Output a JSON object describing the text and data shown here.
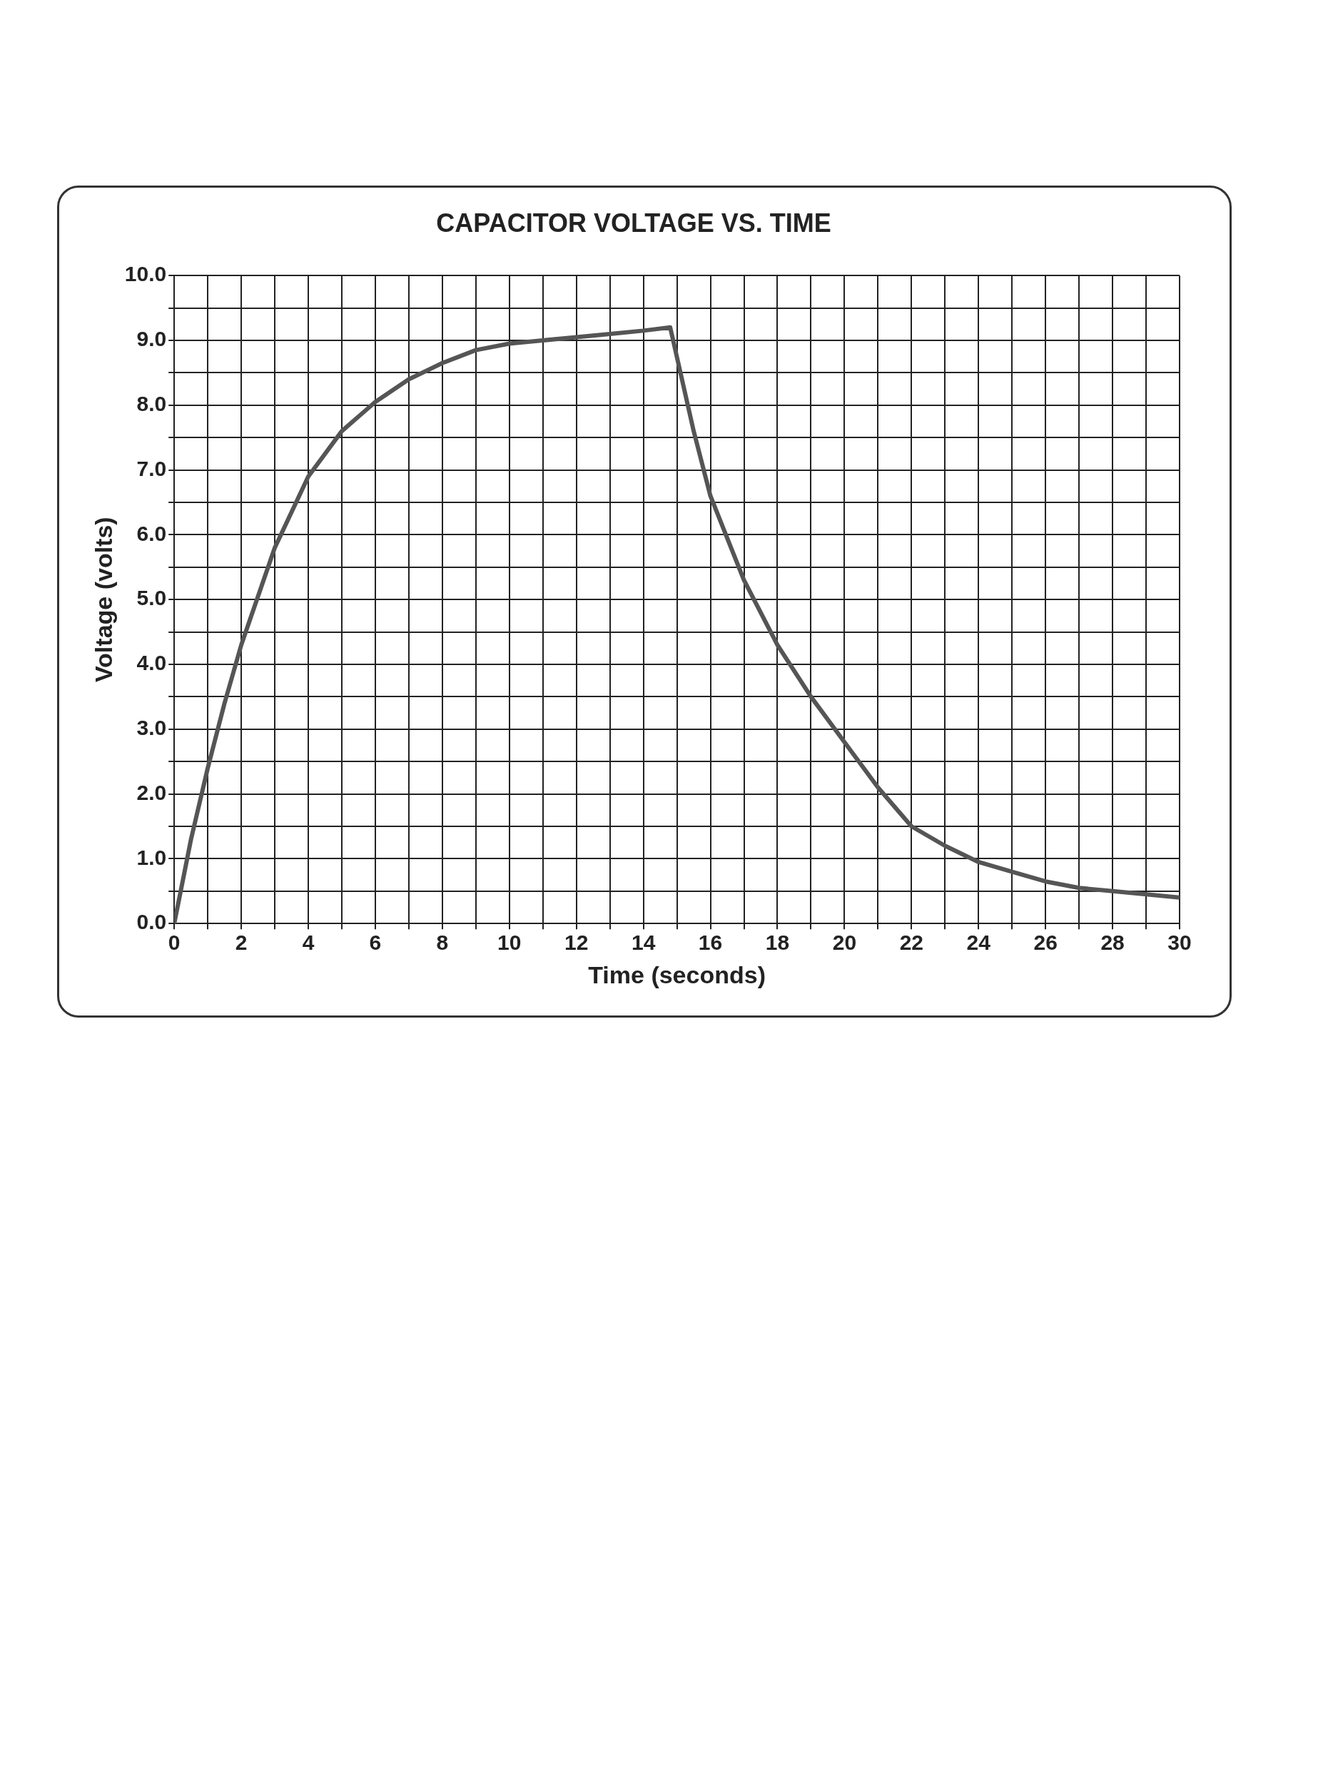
{
  "chart_data": {
    "type": "line",
    "title": "CAPACITOR VOLTAGE VS. TIME",
    "xlabel": "Time (seconds)",
    "ylabel": "Voltage (volts)",
    "series": [
      {
        "color": "#555555",
        "x": [
          0,
          0.5,
          1,
          1.5,
          2,
          3,
          4,
          5,
          6,
          7,
          8,
          9,
          10,
          11,
          12,
          13,
          14,
          14.8,
          15.5,
          16,
          17,
          18,
          19,
          20,
          21,
          22,
          23,
          24,
          25,
          26,
          27,
          28,
          29,
          30
        ],
        "values": [
          0,
          1.3,
          2.4,
          3.4,
          4.3,
          5.8,
          6.9,
          7.6,
          8.05,
          8.4,
          8.65,
          8.85,
          8.95,
          9.0,
          9.05,
          9.1,
          9.15,
          9.2,
          7.6,
          6.6,
          5.3,
          4.3,
          3.5,
          2.8,
          2.1,
          1.5,
          1.2,
          0.95,
          0.8,
          0.65,
          0.55,
          0.5,
          0.45,
          0.4
        ]
      }
    ],
    "xlim": [
      0,
      30
    ],
    "xticks": [
      0,
      {
        "value": 1,
        "label": null
      },
      2,
      {
        "value": 3,
        "label": null
      },
      4,
      {
        "value": 5,
        "label": null
      },
      6,
      {
        "value": 7,
        "label": null
      },
      8,
      {
        "value": 9,
        "label": null
      },
      10,
      {
        "value": 11,
        "label": null
      },
      12,
      {
        "value": 13,
        "label": null
      },
      14,
      {
        "value": 15,
        "label": null
      },
      16,
      {
        "value": 17,
        "label": null
      },
      18,
      {
        "value": 19,
        "label": null
      },
      20,
      {
        "value": 21,
        "label": null
      },
      22,
      {
        "value": 23,
        "label": null
      },
      24,
      {
        "value": 25,
        "label": null
      },
      26,
      {
        "value": 27,
        "label": null
      },
      28,
      {
        "value": 29,
        "label": null
      },
      30
    ],
    "ylim": [
      0,
      10
    ],
    "yticks": [
      {
        "value": 0,
        "label": "0.0"
      },
      {
        "value": 0.5,
        "label": null
      },
      {
        "value": 1,
        "label": "1.0"
      },
      {
        "value": 1.5,
        "label": null
      },
      {
        "value": 2,
        "label": "2.0"
      },
      {
        "value": 2.5,
        "label": null
      },
      {
        "value": 3,
        "label": "3.0"
      },
      {
        "value": 3.5,
        "label": null
      },
      {
        "value": 4,
        "label": "4.0"
      },
      {
        "value": 4.5,
        "label": null
      },
      {
        "value": 5,
        "label": "5.0"
      },
      {
        "value": 5.5,
        "label": null
      },
      {
        "value": 6,
        "label": "6.0"
      },
      {
        "value": 6.5,
        "label": null
      },
      {
        "value": 7,
        "label": "7.0"
      },
      {
        "value": 7.5,
        "label": null
      },
      {
        "value": 8,
        "label": "8.0"
      },
      {
        "value": 8.5,
        "label": null
      },
      {
        "value": 9,
        "label": "9.0"
      },
      {
        "value": 9.5,
        "label": null
      },
      {
        "value": 10,
        "label": "10.0"
      }
    ],
    "grid": true,
    "legend": false,
    "marker": "none",
    "line_style": "solid"
  }
}
